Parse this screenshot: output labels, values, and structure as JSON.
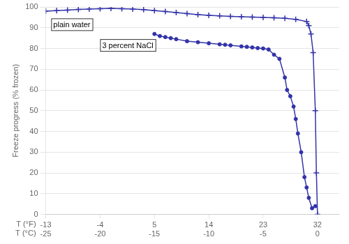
{
  "chart_data": {
    "type": "line",
    "ylabel": "Freeze progress (% frozen)",
    "xlabel": "T (°C)",
    "x2label": "T (°F)",
    "xlim": [
      -25,
      2
    ],
    "xticks": [
      -25,
      -20,
      -15,
      -10,
      -5,
      0
    ],
    "x2ticks": [
      {
        "value": -25,
        "label": "-13"
      },
      {
        "value": -20,
        "label": "-4"
      },
      {
        "value": -15,
        "label": "5"
      },
      {
        "value": -10,
        "label": "14"
      },
      {
        "value": -5,
        "label": "23"
      },
      {
        "value": 0,
        "label": "32"
      }
    ],
    "ylim": [
      0,
      100
    ],
    "yticks": [
      0,
      10,
      20,
      30,
      40,
      50,
      60,
      70,
      80,
      90,
      100
    ],
    "grid": "y",
    "series": [
      {
        "color": "#3333AA",
        "marker": "plus",
        "x": [
          -25,
          -24,
          -23,
          -22,
          -21,
          -20,
          -19,
          -18,
          -17,
          -16,
          -15,
          -14,
          -13,
          -12,
          -11,
          -10,
          -9,
          -8,
          -7,
          -6,
          -5,
          -4,
          -3,
          -2,
          -1,
          -0.8,
          -0.6,
          -0.4,
          -0.2,
          -0.1,
          0.0
        ],
        "values": [
          98,
          98.2,
          98.5,
          98.8,
          99.0,
          99.2,
          99.3,
          99.2,
          99.0,
          98.7,
          98.2,
          97.8,
          97.3,
          96.8,
          96.3,
          96.0,
          95.7,
          95.5,
          95.3,
          95.1,
          95.0,
          94.8,
          94.5,
          94.0,
          93.0,
          91.0,
          87.0,
          78.0,
          50.0,
          20.0,
          0.0
        ]
      },
      {
        "color": "#3333AA",
        "marker": "circle",
        "x": [
          -15.0,
          -14.5,
          -14.0,
          -13.5,
          -13.0,
          -12.0,
          -11.0,
          -10.0,
          -9.0,
          -8.5,
          -8.0,
          -7.0,
          -6.5,
          -6.0,
          -5.5,
          -5.0,
          -4.5,
          -4.0,
          -3.5,
          -3.0,
          -2.8,
          -2.5,
          -2.2,
          -2.0,
          -1.8,
          -1.5,
          -1.2,
          -1.0,
          -0.8,
          -0.5,
          -0.2
        ],
        "values": [
          87.0,
          86.0,
          85.5,
          85.0,
          84.5,
          83.5,
          83.0,
          82.5,
          82.0,
          81.8,
          81.5,
          81.0,
          80.8,
          80.5,
          80.2,
          80.0,
          79.5,
          77.0,
          75.0,
          66.0,
          60.0,
          57.0,
          52.0,
          46.0,
          39.0,
          30.0,
          18.0,
          13.0,
          8.0,
          3.0,
          4.0
        ]
      }
    ],
    "annotations": [
      {
        "text": "plain water",
        "x": -24.5,
        "y": 94.5
      },
      {
        "text": "3 percent NaCl",
        "x": -20,
        "y": 84.5
      }
    ],
    "legend": false
  }
}
